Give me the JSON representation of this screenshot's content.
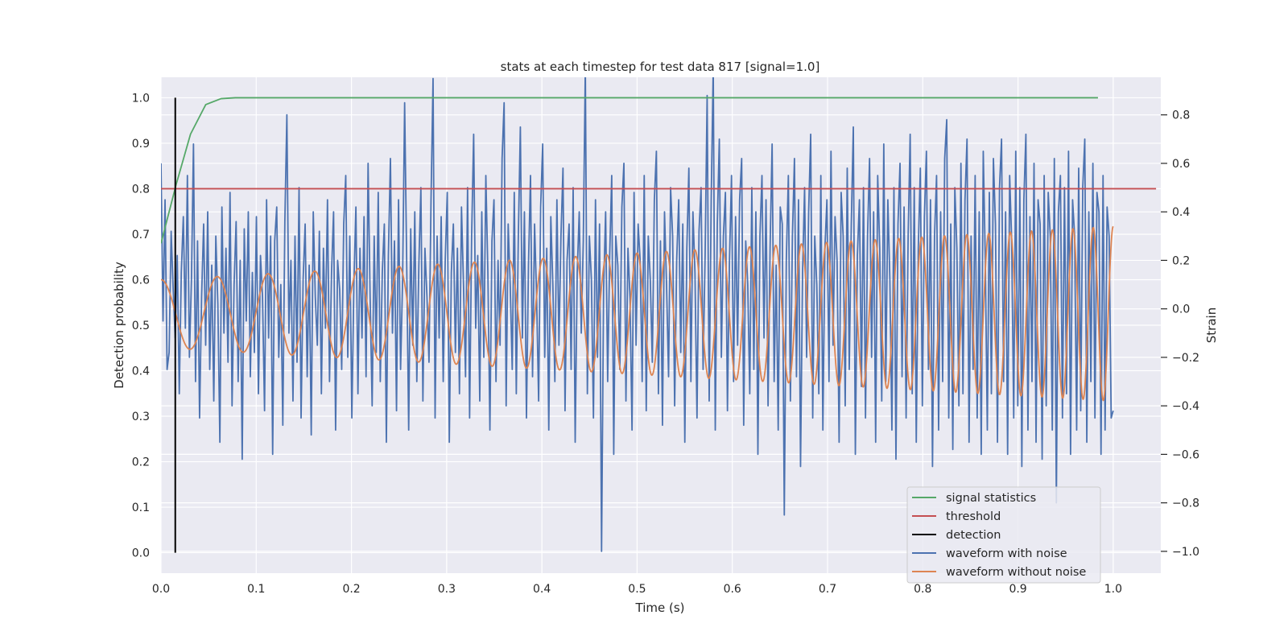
{
  "chart_data": {
    "type": "line",
    "title": "stats at each timestep for test data 817 [signal=1.0]",
    "xlabel": "Time (s)",
    "ylabel_left": "Detection probability",
    "ylabel_right": "Strain",
    "xlim": [
      0.0,
      1.05
    ],
    "ylim_left": [
      -0.045,
      1.045
    ],
    "ylim_right": [
      -1.09,
      0.955
    ],
    "x_ticks": [
      0.0,
      0.1,
      0.2,
      0.3,
      0.4,
      0.5,
      0.6,
      0.7,
      0.8,
      0.9,
      1.0
    ],
    "x_tick_labels": [
      "0.0",
      "0.1",
      "0.2",
      "0.3",
      "0.4",
      "0.5",
      "0.6",
      "0.7",
      "0.8",
      "0.9",
      "1.0"
    ],
    "y_left_ticks": [
      0.0,
      0.1,
      0.2,
      0.3,
      0.4,
      0.5,
      0.6,
      0.7,
      0.8,
      0.9,
      1.0
    ],
    "y_left_tick_labels": [
      "0.0",
      "0.1",
      "0.2",
      "0.3",
      "0.4",
      "0.5",
      "0.6",
      "0.7",
      "0.8",
      "0.9",
      "1.0"
    ],
    "y_right_ticks": [
      -1.0,
      -0.8,
      -0.6,
      -0.4,
      -0.2,
      0.0,
      0.2,
      0.4,
      0.6,
      0.8
    ],
    "y_right_tick_labels": [
      "−1.0",
      "−0.8",
      "−0.6",
      "−0.4",
      "−0.2",
      "0.0",
      "0.2",
      "0.4",
      "0.6",
      "0.8"
    ],
    "grid": true,
    "background": "#eaeaf2",
    "legend_position": "lower-right",
    "series": [
      {
        "name": "signal statistics",
        "axis": "left",
        "color": "#55a868",
        "x": [
          0.0,
          0.016,
          0.031,
          0.047,
          0.063,
          0.078,
          0.094,
          0.125,
          0.2,
          0.4,
          0.6,
          0.8,
          0.984
        ],
        "y": [
          0.68,
          0.81,
          0.92,
          0.985,
          0.998,
          1.0,
          1.0,
          1.0,
          1.0,
          1.0,
          1.0,
          1.0,
          1.0
        ]
      },
      {
        "name": "threshold",
        "axis": "left",
        "color": "#c44e52",
        "x": [
          0.0,
          1.045
        ],
        "y": [
          0.8,
          0.8
        ]
      },
      {
        "name": "detection",
        "axis": "left",
        "color": "#000000",
        "x": [
          0.015,
          0.015
        ],
        "y": [
          0.0,
          1.0
        ]
      },
      {
        "name": "waveform with noise",
        "axis": "right",
        "color": "#4c72b0",
        "x_start": 0.0,
        "x_end": 1.0,
        "y": [
          0.6,
          -0.05,
          0.45,
          -0.25,
          -0.18,
          0.32,
          0.08,
          -0.12,
          0.22,
          -0.35,
          0.15,
          0.38,
          -0.08,
          0.55,
          -0.2,
          0.12,
          0.68,
          -0.3,
          0.28,
          -0.45,
          0.05,
          0.35,
          -0.15,
          0.4,
          -0.25,
          0.18,
          -0.38,
          0.3,
          0.02,
          -0.55,
          0.42,
          -0.1,
          0.25,
          -0.22,
          0.48,
          -0.4,
          0.1,
          0.36,
          -0.3,
          0.2,
          -0.62,
          0.33,
          -0.05,
          0.4,
          -0.28,
          0.15,
          -0.18,
          0.38,
          -0.35,
          0.22,
          0.05,
          -0.42,
          0.45,
          -0.12,
          0.3,
          -0.6,
          0.28,
          0.42,
          -0.2,
          0.1,
          -0.48,
          0.36,
          0.8,
          -0.1,
          0.2,
          -0.38,
          0.3,
          -0.22,
          0.5,
          -0.45,
          0.12,
          0.35,
          -0.28,
          0.18,
          -0.52,
          0.4,
          0.05,
          -0.15,
          0.32,
          -0.35,
          0.25,
          -0.08,
          0.45,
          -0.3,
          0.15,
          0.4,
          -0.5,
          0.2,
          0.08,
          -0.25,
          0.35,
          0.55,
          -0.2,
          0.3,
          -0.45,
          0.1,
          0.42,
          -0.35,
          0.25,
          -0.12,
          0.38,
          -0.28,
          0.6,
          0.05,
          -0.4,
          0.3,
          -0.18,
          0.48,
          -0.3,
          0.15,
          0.35,
          -0.55,
          0.22,
          0.62,
          -0.1,
          0.28,
          -0.42,
          0.45,
          -0.25,
          0.12,
          0.85,
          0.2,
          -0.5,
          0.33,
          -0.15,
          0.4,
          -0.3,
          0.18,
          0.5,
          -0.38,
          0.25,
          0.05,
          -0.22,
          0.45,
          0.95,
          -0.45,
          0.3,
          -0.12,
          0.38,
          -0.3,
          0.2,
          0.48,
          -0.55,
          0.15,
          0.35,
          -0.18,
          0.25,
          -0.35,
          0.42,
          0.1,
          -0.28,
          0.5,
          -0.45,
          0.3,
          0.72,
          -0.08,
          0.22,
          -0.38,
          0.4,
          -0.2,
          0.55,
          0.15,
          -0.5,
          0.28,
          0.45,
          -0.3,
          0.2,
          -0.15,
          0.62,
          0.85,
          -0.4,
          0.35,
          0.1,
          -0.25,
          0.48,
          -0.35,
          0.3,
          0.75,
          -0.12,
          0.4,
          -0.45,
          0.18,
          0.55,
          -0.28,
          0.35,
          0.05,
          -0.38,
          0.42,
          0.68,
          -0.2,
          0.25,
          -0.5,
          0.38,
          0.1,
          -0.3,
          0.45,
          -0.15,
          0.3,
          0.58,
          -0.42,
          0.2,
          0.35,
          -0.25,
          0.5,
          -0.55,
          0.15,
          0.4,
          -0.1,
          0.28,
          1.0,
          -0.35,
          0.3,
          0.12,
          -0.45,
          0.45,
          -0.2,
          0.35,
          -1.0,
          0.08,
          0.4,
          -0.3,
          0.22,
          0.55,
          -0.6,
          0.3,
          0.18,
          -0.25,
          0.42,
          0.6,
          -0.38,
          0.25,
          0.05,
          -0.5,
          0.48,
          -0.15,
          0.35,
          0.2,
          -0.3,
          0.55,
          -0.42,
          0.3,
          0.12,
          -0.22,
          0.45,
          0.65,
          -0.35,
          0.28,
          -0.48,
          0.4,
          0.1,
          -0.28,
          0.5,
          0.3,
          -0.4,
          0.2,
          0.45,
          -0.18,
          0.35,
          -0.55,
          0.25,
          0.58,
          -0.3,
          0.4,
          0.15,
          -0.45,
          0.32,
          0.5,
          -0.25,
          0.22,
          0.88,
          -0.38,
          0.45,
          1.0,
          -0.5,
          0.35,
          0.7,
          -0.2,
          0.3,
          0.48,
          -0.42,
          0.2,
          0.55,
          -0.3,
          0.38,
          -0.15,
          0.45,
          0.62,
          -0.48,
          0.28,
          0.1,
          -0.35,
          0.5,
          -0.25,
          0.4,
          -0.6,
          0.3,
          0.55,
          -0.12,
          0.45,
          -0.4,
          0.25,
          0.68,
          -0.3,
          0.18,
          -0.5,
          0.42,
          0.35,
          -0.85,
          0.2,
          0.55,
          -0.38,
          0.3,
          0.62,
          -0.28,
          0.45,
          -0.65,
          0.15,
          0.5,
          -0.2,
          0.4,
          0.72,
          -0.45,
          0.3,
          0.1,
          -0.35,
          0.55,
          -0.5,
          0.25,
          0.45,
          -0.3,
          0.65,
          -0.15,
          0.38,
          0.2,
          -0.55,
          0.48,
          0.3,
          -0.4,
          0.58,
          -0.25,
          0.35,
          0.75,
          -0.6,
          0.22,
          0.45,
          -0.32,
          0.5,
          -0.45,
          0.3,
          0.62,
          -0.2,
          0.4,
          -0.55,
          0.55,
          0.25,
          -0.38,
          0.68,
          -0.3,
          0.45,
          0.12,
          -0.5,
          0.5,
          -0.62,
          0.35,
          0.6,
          -0.28,
          0.42,
          -0.45,
          0.3,
          0.72,
          -0.35,
          0.5,
          -0.55,
          0.25,
          0.58,
          -0.4,
          0.38,
          0.65,
          -0.25,
          0.45,
          -0.65,
          0.3,
          0.55,
          -0.5,
          0.4,
          -0.3,
          0.62,
          0.78,
          -0.45,
          0.35,
          -0.58,
          0.5,
          0.25,
          -0.4,
          0.6,
          -0.35,
          0.45,
          0.7,
          -0.55,
          0.3,
          -0.25,
          0.55,
          -0.45,
          0.4,
          -0.6,
          0.65,
          0.2,
          -0.5,
          0.48,
          -0.35,
          0.62,
          0.35,
          -0.55,
          0.5,
          0.7,
          -0.3,
          0.4,
          -0.6,
          0.55,
          0.28,
          -0.45,
          0.65,
          -0.4,
          0.5,
          -0.65,
          0.45,
          0.72,
          -0.5,
          0.38,
          -0.3,
          0.6,
          -0.55,
          0.45,
          0.35,
          -0.62,
          0.55,
          -0.4,
          0.48,
          0.3,
          -0.5,
          0.62,
          -0.8,
          0.4,
          0.55,
          -0.45,
          0.5,
          -0.35,
          0.65,
          -0.6,
          0.45,
          0.3,
          -0.5,
          0.58,
          -0.42,
          0.5,
          0.7,
          -0.55,
          0.4,
          -0.3,
          0.6,
          -0.45,
          0.48,
          0.4,
          -0.6,
          0.55,
          -0.5,
          0.42,
          0.3,
          -0.45,
          -0.42
        ]
      },
      {
        "name": "waveform without noise",
        "axis": "right",
        "color": "#dd8452",
        "x_start": 0.0,
        "x_end": 1.0,
        "freq_start": 16,
        "freq_end": 48,
        "amp_start": 0.14,
        "amp_end": 0.36
      }
    ]
  }
}
